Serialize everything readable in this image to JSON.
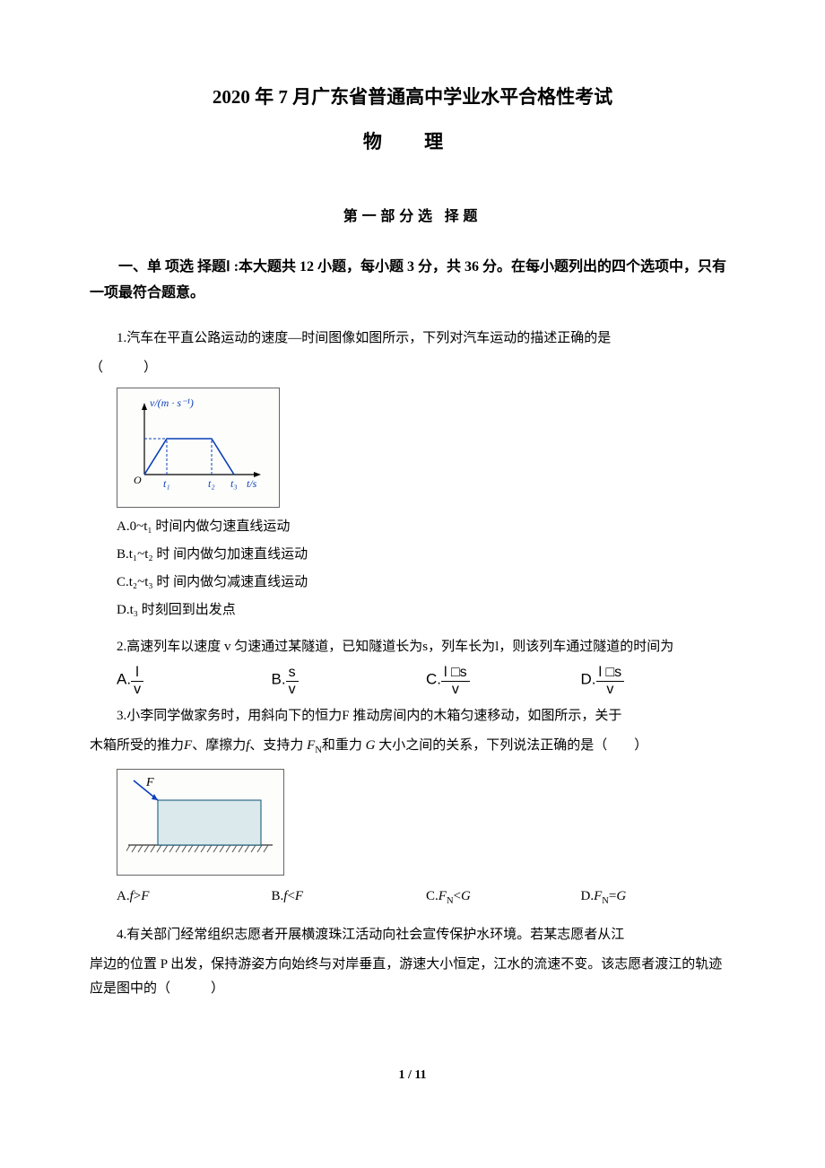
{
  "title_main": "2020 年 7 月广东省普通高中学业水平合格性考试",
  "title_sub": "物 理",
  "section_header": "第一部分选 择题",
  "instructions": "一、单 项选 择题Ⅰ :本大题共 12 小题，每小题 3 分，共 36 分。在每小题列出的四个选项中，只有一项最符合题意。",
  "page_num": "1 / 11",
  "q1": {
    "stem_p1": "1.汽车在平直公路运动的速度—时间图像如图所示，下列对汽车运动的描述正确的是",
    "stem_p2": "（　　　）",
    "graph": {
      "ylabel": "v/(m · s⁻¹)",
      "xlabel": "t/s",
      "xticks": [
        "t₁",
        "t₂",
        "t₃"
      ],
      "line_color": "#0a3fb8",
      "axis_color": "#000000",
      "dash_color": "#0a3fb8",
      "bg": "#fdfdfc",
      "text_color": "#0a3fb8",
      "x_positions": [
        25,
        75,
        100
      ],
      "y_plateau": 40
    },
    "optA": "A.0~t₁ 时间内做匀速直线运动",
    "optB": "B.t₁~t₂ 时 间内做匀加速直线运动",
    "optC": "C.t₂~t₃ 时 间内做匀减速直线运动",
    "optD": "D.t₃ 时刻回到出发点"
  },
  "q2": {
    "stem": "2.高速列车以速度 v 匀速通过某隧道，已知隧道长为s，列车长为l，则该列车通过隧道的时间为",
    "optA_label": "A.",
    "optA_num": "l",
    "optA_den": "v",
    "optB_label": "B.",
    "optB_num": "s",
    "optB_den": "v",
    "optC_label": "C.",
    "optC_num": "l □s",
    "optC_den": "v",
    "optD_label": "D.",
    "optD_num": "l □s",
    "optD_den": "v"
  },
  "q3": {
    "stem_p1": "3.小李同学做家务时，用斜向下的恒力F 推动房间内的木箱匀速移动，如图所示，关于",
    "stem_p2": "木箱所受的推力F、摩擦力f、支持力 F_N和重力 G 大小之间的关系，下列说法正确的是（　　）",
    "figure": {
      "box_fill": "#dbe8ec",
      "box_stroke": "#2c6d86",
      "ground_color": "#555",
      "arrow_color": "#0a3fb8",
      "F_label": "F",
      "bg": "#fdfdfc"
    },
    "optA": "A.f>F",
    "optB": "B.f<F",
    "optC": "C.F_N<G",
    "optD": "D.F_N=G"
  },
  "q4": {
    "stem_p1": "4.有关部门经常组织志愿者开展横渡珠江活动向社会宣传保护水环境。若某志愿者从江",
    "stem_p2": "岸边的位置 P 出发，保持游姿方向始终与对岸垂直，游速大小恒定，江水的流速不变。该志愿者渡江的轨迹应是图中的（　　　）"
  }
}
